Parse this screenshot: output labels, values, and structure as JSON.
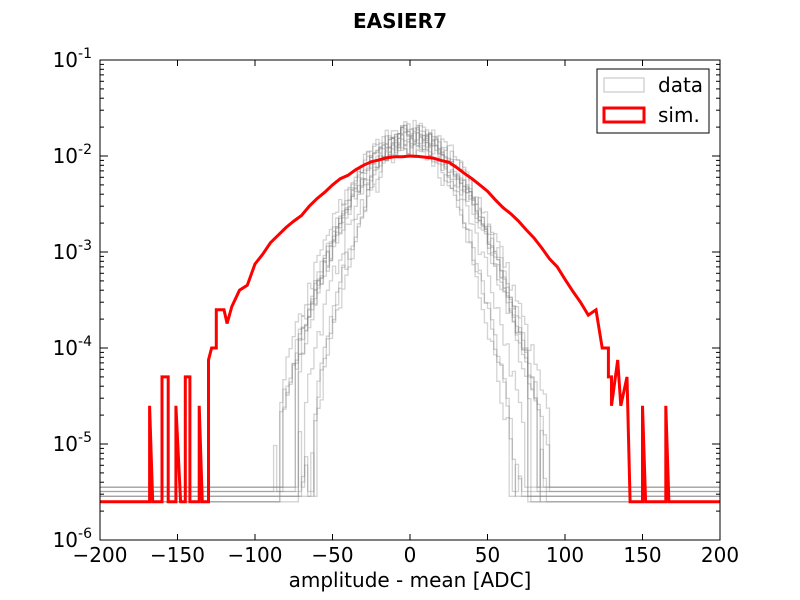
{
  "chart_data": {
    "type": "line",
    "title": "EASIER7",
    "xlabel": "amplitude - mean [ADC]",
    "ylabel": "",
    "xlim": [
      -200,
      200
    ],
    "ylim": [
      1e-06,
      0.1
    ],
    "yscale": "log",
    "x_ticks": [
      -200,
      -150,
      -100,
      -50,
      0,
      50,
      100,
      150,
      200
    ],
    "x_tick_labels": [
      "−200",
      "−150",
      "−100",
      "−50",
      "0",
      "50",
      "100",
      "150",
      "200"
    ],
    "y_ticks": [
      {
        "value": 1e-06,
        "base": "10",
        "exp": "-6"
      },
      {
        "value": 1e-05,
        "base": "10",
        "exp": "-5"
      },
      {
        "value": 0.0001,
        "base": "10",
        "exp": "-4"
      },
      {
        "value": 0.001,
        "base": "10",
        "exp": "-3"
      },
      {
        "value": 0.01,
        "base": "10",
        "exp": "-2"
      },
      {
        "value": 0.1,
        "base": "10",
        "exp": "-1"
      }
    ],
    "legend_position": "top-right",
    "legend": [
      {
        "label": "data",
        "color": "#bfbfbf"
      },
      {
        "label": "sim.",
        "color": "#ff0000"
      }
    ],
    "series": [
      {
        "name": "data",
        "style": "gaussian-family",
        "count": 12,
        "color": "#808080",
        "peak_range": [
          0.0125,
          0.0195
        ],
        "sigma_range": [
          16,
          24
        ],
        "cutoff_range": [
          -90,
          90
        ]
      },
      {
        "name": "sim.",
        "color": "#ff0000",
        "points": [
          [
            -200,
            2.5e-06
          ],
          [
            -168,
            2.5e-06
          ],
          [
            -168,
            2.5e-05
          ],
          [
            -166,
            2.5e-06
          ],
          [
            -160,
            2.5e-06
          ],
          [
            -160,
            5e-05
          ],
          [
            -156,
            5e-05
          ],
          [
            -156,
            2.5e-06
          ],
          [
            -151,
            2.5e-06
          ],
          [
            -151,
            2.5e-05
          ],
          [
            -148,
            2.5e-06
          ],
          [
            -145,
            2.5e-06
          ],
          [
            -145,
            5e-05
          ],
          [
            -142,
            5e-05
          ],
          [
            -142,
            2.5e-06
          ],
          [
            -136,
            2.5e-06
          ],
          [
            -136,
            2.5e-05
          ],
          [
            -134,
            2.5e-06
          ],
          [
            -130,
            2.5e-06
          ],
          [
            -130,
            7.5e-05
          ],
          [
            -128,
            0.0001
          ],
          [
            -125,
            0.0001
          ],
          [
            -125,
            0.00025
          ],
          [
            -120,
            0.00025
          ],
          [
            -118,
            0.00018
          ],
          [
            -115,
            0.00027
          ],
          [
            -110,
            0.0004
          ],
          [
            -105,
            0.00045
          ],
          [
            -100,
            0.00075
          ],
          [
            -95,
            0.00095
          ],
          [
            -90,
            0.00125
          ],
          [
            -85,
            0.0015
          ],
          [
            -80,
            0.0018
          ],
          [
            -75,
            0.0021
          ],
          [
            -70,
            0.0024
          ],
          [
            -65,
            0.003
          ],
          [
            -60,
            0.0036
          ],
          [
            -55,
            0.0042
          ],
          [
            -50,
            0.005
          ],
          [
            -45,
            0.0058
          ],
          [
            -40,
            0.0063
          ],
          [
            -35,
            0.0072
          ],
          [
            -30,
            0.008
          ],
          [
            -25,
            0.0087
          ],
          [
            -20,
            0.0091
          ],
          [
            -15,
            0.0096
          ],
          [
            -10,
            0.0098
          ],
          [
            -5,
            0.0098
          ],
          [
            0,
            0.01
          ],
          [
            5,
            0.0099
          ],
          [
            10,
            0.0097
          ],
          [
            15,
            0.0095
          ],
          [
            20,
            0.009
          ],
          [
            25,
            0.0086
          ],
          [
            30,
            0.0076
          ],
          [
            35,
            0.0066
          ],
          [
            40,
            0.0058
          ],
          [
            45,
            0.005
          ],
          [
            50,
            0.0043
          ],
          [
            55,
            0.0035
          ],
          [
            60,
            0.0029
          ],
          [
            65,
            0.0025
          ],
          [
            70,
            0.0021
          ],
          [
            75,
            0.0017
          ],
          [
            80,
            0.0014
          ],
          [
            85,
            0.0011
          ],
          [
            90,
            0.00085
          ],
          [
            95,
            0.0007
          ],
          [
            100,
            0.00052
          ],
          [
            105,
            0.00039
          ],
          [
            110,
            0.0003
          ],
          [
            115,
            0.00022
          ],
          [
            120,
            0.00025
          ],
          [
            124,
            0.0001
          ],
          [
            128,
            0.0001
          ],
          [
            128,
            5e-05
          ],
          [
            130,
            5e-05
          ],
          [
            130,
            2.5e-05
          ],
          [
            134,
            7.5e-05
          ],
          [
            136,
            2.5e-05
          ],
          [
            140,
            5e-05
          ],
          [
            142,
            2.5e-06
          ],
          [
            150,
            2.5e-06
          ],
          [
            150,
            2.5e-05
          ],
          [
            152,
            2.5e-06
          ],
          [
            165,
            2.5e-06
          ],
          [
            165,
            2.5e-05
          ],
          [
            167,
            2.5e-06
          ],
          [
            200,
            2.5e-06
          ]
        ]
      }
    ]
  }
}
